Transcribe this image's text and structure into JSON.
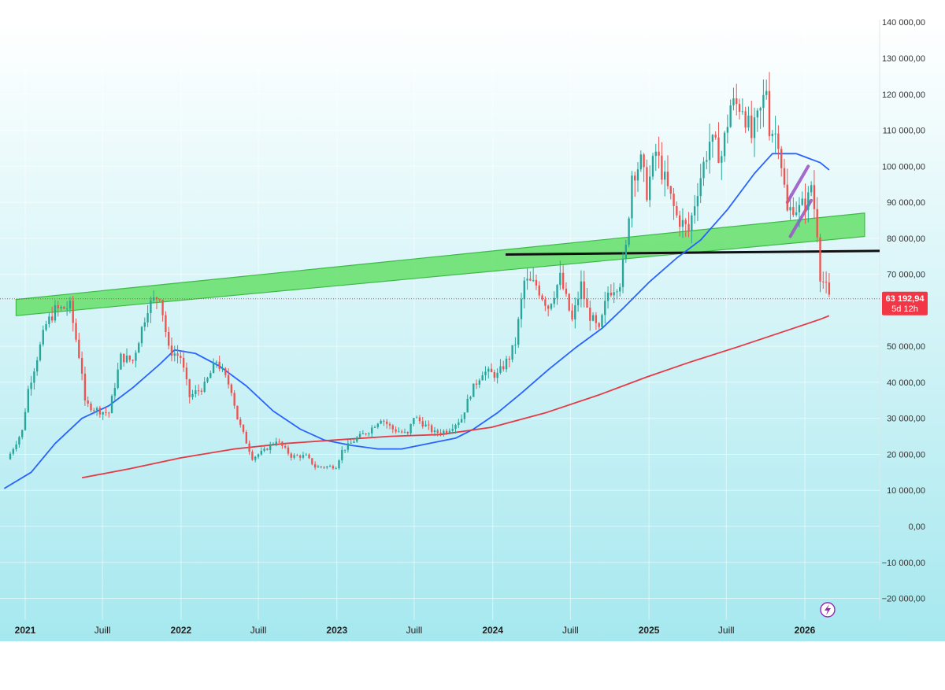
{
  "chart_data": {
    "type": "candlestick",
    "interval": "weekly",
    "price_scale": {
      "labels": [
        "140 000,00",
        "130 000,00",
        "120 000,00",
        "110 000,00",
        "100 000,00",
        "90 000,00",
        "80 000,00",
        "70 000,00",
        "50 000,00",
        "40 000,00",
        "30 000,00",
        "20 000,00",
        "10 000,00",
        "0,00",
        "−10 000,00",
        "−20 000,00"
      ],
      "values": [
        140000,
        130000,
        120000,
        110000,
        100000,
        90000,
        80000,
        70000,
        50000,
        40000,
        30000,
        20000,
        10000,
        0,
        -10000,
        -20000
      ],
      "range": [
        -25000,
        141000
      ]
    },
    "time_scale": {
      "labels": [
        "2021",
        "Juill",
        "2022",
        "Juill",
        "2023",
        "Juill",
        "2024",
        "Juill",
        "2025",
        "Juill",
        "2026"
      ],
      "dates": [
        "2021-01-01",
        "2021-07-01",
        "2022-01-01",
        "2022-07-01",
        "2023-01-01",
        "2023-07-01",
        "2024-01-01",
        "2024-07-01",
        "2025-01-01",
        "2025-07-01",
        "2026-01-01"
      ],
      "bold": [
        true,
        false,
        true,
        false,
        true,
        false,
        true,
        false,
        true,
        false,
        true
      ]
    },
    "candles_anchor": [
      [
        "2020-11-20",
        18600
      ],
      [
        "2020-12-25",
        26500
      ],
      [
        "2021-01-08",
        38000
      ],
      [
        "2021-02-19",
        56000
      ],
      [
        "2021-03-12",
        60000
      ],
      [
        "2021-04-16",
        61000
      ],
      [
        "2021-05-14",
        43000
      ],
      [
        "2021-05-21",
        34000
      ],
      [
        "2021-06-25",
        32000
      ],
      [
        "2021-07-16",
        31500
      ],
      [
        "2021-08-13",
        47000
      ],
      [
        "2021-09-10",
        46000
      ],
      [
        "2021-10-15",
        61000
      ],
      [
        "2021-11-12",
        64500
      ],
      [
        "2021-12-03",
        49000
      ],
      [
        "2021-12-31",
        47000
      ],
      [
        "2022-01-21",
        36000
      ],
      [
        "2022-02-25",
        39000
      ],
      [
        "2022-03-25",
        46000
      ],
      [
        "2022-04-29",
        38000
      ],
      [
        "2022-05-13",
        30000
      ],
      [
        "2022-06-17",
        19000
      ],
      [
        "2022-07-15",
        21000
      ],
      [
        "2022-08-12",
        24000
      ],
      [
        "2022-09-16",
        19500
      ],
      [
        "2022-10-21",
        19500
      ],
      [
        "2022-11-11",
        16500
      ],
      [
        "2022-12-30",
        16600
      ],
      [
        "2023-01-13",
        21000
      ],
      [
        "2023-02-17",
        24500
      ],
      [
        "2023-03-17",
        26500
      ],
      [
        "2023-04-14",
        30000
      ],
      [
        "2023-05-12",
        27000
      ],
      [
        "2023-06-16",
        25500
      ],
      [
        "2023-06-30",
        30500
      ],
      [
        "2023-08-18",
        26000
      ],
      [
        "2023-09-15",
        26500
      ],
      [
        "2023-10-20",
        30000
      ],
      [
        "2023-11-10",
        37000
      ],
      [
        "2023-12-08",
        43000
      ],
      [
        "2024-01-12",
        42000
      ],
      [
        "2024-02-09",
        47000
      ],
      [
        "2024-02-23",
        51000
      ],
      [
        "2024-03-15",
        68000
      ],
      [
        "2024-04-12",
        67000
      ],
      [
        "2024-05-10",
        61000
      ],
      [
        "2024-06-07",
        69000
      ],
      [
        "2024-07-05",
        57000
      ],
      [
        "2024-07-26",
        67000
      ],
      [
        "2024-08-09",
        60000
      ],
      [
        "2024-09-06",
        54000
      ],
      [
        "2024-09-27",
        65000
      ],
      [
        "2024-10-25",
        68000
      ],
      [
        "2024-11-08",
        77000
      ],
      [
        "2024-11-22",
        98000
      ],
      [
        "2024-12-13",
        101000
      ],
      [
        "2024-12-27",
        93000
      ],
      [
        "2025-01-17",
        104000
      ],
      [
        "2025-02-07",
        96000
      ],
      [
        "2025-03-07",
        86000
      ],
      [
        "2025-04-04",
        82000
      ],
      [
        "2025-04-25",
        94000
      ],
      [
        "2025-05-23",
        107000
      ],
      [
        "2025-06-20",
        103000
      ],
      [
        "2025-07-11",
        117000
      ],
      [
        "2025-08-08",
        117000
      ],
      [
        "2025-08-29",
        108000
      ],
      [
        "2025-09-19",
        115000
      ],
      [
        "2025-10-03",
        122000
      ],
      [
        "2025-10-10",
        111000
      ],
      [
        "2025-10-31",
        108000
      ],
      [
        "2025-11-14",
        94000
      ],
      [
        "2025-11-21",
        87000
      ],
      [
        "2025-12-05",
        89000
      ],
      [
        "2025-12-19",
        88000
      ],
      [
        "2026-01-09",
        91000
      ],
      [
        "2026-01-16",
        95000
      ],
      [
        "2026-01-30",
        82000
      ],
      [
        "2026-02-06",
        70000
      ],
      [
        "2026-02-20",
        66000
      ],
      [
        "2026-02-27",
        63192.94
      ]
    ],
    "series": [
      {
        "name": "",
        "type": "ma",
        "color": "#2962ff",
        "points": [
          [
            "2020-11-13",
            10500
          ],
          [
            "2021-01-15",
            15000
          ],
          [
            "2021-03-12",
            23000
          ],
          [
            "2021-05-14",
            30000
          ],
          [
            "2021-07-16",
            33500
          ],
          [
            "2021-09-10",
            38500
          ],
          [
            "2021-11-12",
            45000
          ],
          [
            "2021-12-17",
            49000
          ],
          [
            "2022-02-04",
            48000
          ],
          [
            "2022-04-01",
            44500
          ],
          [
            "2022-06-03",
            39000
          ],
          [
            "2022-08-05",
            32000
          ],
          [
            "2022-10-07",
            27000
          ],
          [
            "2022-12-02",
            24000
          ],
          [
            "2023-02-03",
            22500
          ],
          [
            "2023-04-07",
            21500
          ],
          [
            "2023-06-02",
            21500
          ],
          [
            "2023-08-04",
            23000
          ],
          [
            "2023-10-06",
            24500
          ],
          [
            "2023-11-17",
            27000
          ],
          [
            "2024-01-12",
            31500
          ],
          [
            "2024-03-08",
            37000
          ],
          [
            "2024-05-10",
            43500
          ],
          [
            "2024-07-12",
            49500
          ],
          [
            "2024-09-13",
            55000
          ],
          [
            "2024-11-01",
            60500
          ],
          [
            "2025-01-03",
            68000
          ],
          [
            "2025-03-07",
            74500
          ],
          [
            "2025-05-02",
            79500
          ],
          [
            "2025-07-04",
            88000
          ],
          [
            "2025-09-05",
            98000
          ],
          [
            "2025-10-17",
            103500
          ],
          [
            "2025-12-12",
            103500
          ],
          [
            "2026-02-06",
            101000
          ],
          [
            "2026-02-27",
            99000
          ]
        ]
      },
      {
        "name": "",
        "type": "ma",
        "color": "#e53a46",
        "points": [
          [
            "2021-05-14",
            13500
          ],
          [
            "2021-09-03",
            16000
          ],
          [
            "2021-12-31",
            19000
          ],
          [
            "2022-05-06",
            21500
          ],
          [
            "2022-09-02",
            23000
          ],
          [
            "2022-12-30",
            24000
          ],
          [
            "2023-05-05",
            25000
          ],
          [
            "2023-09-01",
            25500
          ],
          [
            "2023-12-29",
            27500
          ],
          [
            "2024-05-03",
            31500
          ],
          [
            "2024-09-06",
            36500
          ],
          [
            "2024-12-27",
            41500
          ],
          [
            "2025-04-04",
            45500
          ],
          [
            "2025-08-01",
            50000
          ],
          [
            "2025-12-05",
            55000
          ],
          [
            "2026-02-06",
            57500
          ],
          [
            "2026-02-27",
            58500
          ]
        ]
      }
    ],
    "annotations": {
      "green_channel": {
        "color": "#69e06d",
        "lower": [
          [
            "2020-11-13",
            58500
          ],
          [
            "2026-02-27",
            80500
          ]
        ],
        "upper": [
          [
            "2020-11-13",
            63000
          ],
          [
            "2026-02-27",
            87000
          ]
        ]
      },
      "support_line": {
        "color": "#111111",
        "points": [
          [
            "2024-02-23",
            75500
          ],
          [
            "2026-03-06",
            76500
          ]
        ]
      },
      "purple_lines": {
        "color": "#9b59c6",
        "lines": [
          [
            [
              "2025-11-21",
              90000
            ],
            [
              "2026-01-09",
              100000
            ]
          ],
          [
            [
              "2025-11-28",
              80500
            ],
            [
              "2026-01-16",
              90500
            ]
          ]
        ]
      }
    },
    "current_price": {
      "value": 63192.94,
      "label": "63 192,94",
      "countdown": "5d 12h",
      "color": "#f23645"
    },
    "grid": true,
    "background": {
      "top": "#ffffff",
      "bottom": "#a6e8ef"
    }
  }
}
